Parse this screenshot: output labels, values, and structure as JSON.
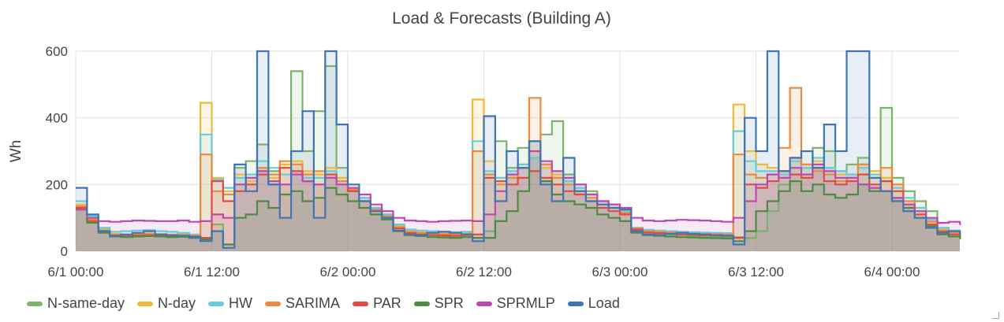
{
  "chart_data": {
    "type": "line",
    "step": true,
    "filled": true,
    "title": "Load & Forecasts (Building A)",
    "xlabel": "",
    "ylabel": "Wh",
    "ylim": [
      0,
      600
    ],
    "yticks": [
      0,
      200,
      400,
      600
    ],
    "xticks": [
      "6/1 00:00",
      "6/1 12:00",
      "6/2 00:00",
      "6/2 12:00",
      "6/3 00:00",
      "6/3 12:00",
      "6/4 00:00"
    ],
    "x_start": "6/1 00:00",
    "x_step_hours": 1,
    "x_range_hours": [
      0,
      78
    ],
    "grid": true,
    "legend_position": "bottom-left",
    "series": [
      {
        "name": "N-same-day",
        "color": "#7cb36b",
        "values": [
          130,
          90,
          60,
          45,
          42,
          45,
          47,
          45,
          43,
          44,
          42,
          40,
          80,
          20,
          250,
          270,
          320,
          240,
          200,
          540,
          300,
          420,
          555,
          250,
          180,
          160,
          130,
          110,
          70,
          55,
          50,
          47,
          46,
          45,
          48,
          50,
          60,
          330,
          250,
          310,
          280,
          350,
          390,
          230,
          200,
          180,
          150,
          130,
          110,
          60,
          55,
          52,
          50,
          48,
          46,
          45,
          44,
          43,
          42,
          40,
          60,
          120,
          200,
          280,
          250,
          310,
          300,
          240,
          260,
          280,
          190,
          430,
          220,
          180,
          150,
          120,
          70,
          55,
          45
        ]
      },
      {
        "name": "N-day",
        "color": "#f0b93a",
        "values": [
          140,
          100,
          65,
          52,
          50,
          52,
          53,
          52,
          50,
          51,
          48,
          445,
          220,
          180,
          230,
          210,
          250,
          220,
          260,
          270,
          240,
          230,
          250,
          220,
          190,
          160,
          130,
          110,
          75,
          62,
          58,
          55,
          54,
          53,
          55,
          455,
          270,
          220,
          230,
          260,
          300,
          250,
          230,
          210,
          190,
          170,
          150,
          140,
          120,
          70,
          62,
          60,
          58,
          56,
          55,
          54,
          53,
          52,
          440,
          300,
          260,
          250,
          240,
          280,
          260,
          270,
          250,
          230,
          230,
          260,
          240,
          220,
          200,
          150,
          130,
          90,
          65,
          58,
          52
        ]
      },
      {
        "name": "HW",
        "color": "#67cbe0",
        "values": [
          150,
          105,
          70,
          58,
          60,
          62,
          63,
          60,
          58,
          55,
          50,
          350,
          215,
          190,
          220,
          230,
          270,
          250,
          230,
          240,
          220,
          220,
          240,
          210,
          190,
          160,
          130,
          110,
          80,
          65,
          62,
          60,
          58,
          57,
          58,
          330,
          240,
          220,
          240,
          260,
          280,
          260,
          240,
          210,
          190,
          170,
          150,
          140,
          120,
          70,
          64,
          62,
          60,
          58,
          57,
          56,
          55,
          54,
          360,
          270,
          240,
          240,
          230,
          270,
          250,
          280,
          250,
          240,
          230,
          250,
          230,
          210,
          190,
          160,
          130,
          95,
          70,
          62,
          55
        ]
      },
      {
        "name": "SARIMA",
        "color": "#ee8a3c",
        "values": [
          135,
          95,
          62,
          50,
          48,
          50,
          51,
          50,
          48,
          49,
          45,
          290,
          180,
          170,
          200,
          220,
          250,
          230,
          270,
          260,
          230,
          240,
          220,
          210,
          185,
          150,
          125,
          105,
          72,
          58,
          55,
          52,
          51,
          50,
          52,
          300,
          230,
          200,
          220,
          250,
          460,
          260,
          220,
          200,
          180,
          160,
          140,
          130,
          115,
          68,
          60,
          58,
          56,
          54,
          53,
          52,
          51,
          50,
          290,
          230,
          220,
          230,
          310,
          490,
          260,
          240,
          230,
          210,
          220,
          260,
          220,
          250,
          200,
          150,
          120,
          88,
          62,
          55,
          48
        ]
      },
      {
        "name": "PAR",
        "color": "#e04c43",
        "values": [
          130,
          90,
          58,
          47,
          45,
          47,
          48,
          47,
          45,
          46,
          44,
          40,
          210,
          150,
          180,
          200,
          230,
          200,
          250,
          240,
          210,
          200,
          230,
          200,
          180,
          150,
          120,
          100,
          68,
          54,
          50,
          48,
          47,
          46,
          48,
          50,
          220,
          210,
          200,
          220,
          240,
          220,
          200,
          180,
          170,
          150,
          130,
          120,
          110,
          65,
          56,
          54,
          52,
          50,
          49,
          48,
          47,
          46,
          40,
          200,
          190,
          210,
          240,
          230,
          220,
          250,
          210,
          200,
          210,
          230,
          200,
          210,
          180,
          140,
          110,
          80,
          58,
          50,
          44
        ]
      },
      {
        "name": "SPR",
        "color": "#4e8b41",
        "values": [
          125,
          85,
          55,
          44,
          42,
          44,
          45,
          44,
          42,
          43,
          40,
          35,
          60,
          20,
          100,
          110,
          150,
          130,
          170,
          180,
          150,
          160,
          190,
          170,
          150,
          130,
          110,
          95,
          60,
          48,
          45,
          42,
          41,
          40,
          42,
          40,
          40,
          90,
          120,
          180,
          330,
          210,
          170,
          150,
          140,
          130,
          110,
          100,
          90,
          55,
          48,
          46,
          44,
          42,
          41,
          40,
          39,
          38,
          30,
          60,
          120,
          150,
          180,
          210,
          180,
          200,
          170,
          160,
          170,
          200,
          180,
          180,
          160,
          130,
          100,
          75,
          50,
          44,
          38
        ]
      },
      {
        "name": "SPRMLP",
        "color": "#c049b1",
        "values": [
          125,
          100,
          90,
          88,
          90,
          92,
          91,
          90,
          90,
          92,
          88,
          90,
          110,
          100,
          200,
          220,
          240,
          210,
          200,
          230,
          210,
          200,
          220,
          200,
          190,
          170,
          140,
          120,
          100,
          92,
          90,
          88,
          90,
          91,
          92,
          90,
          110,
          180,
          230,
          250,
          300,
          270,
          240,
          220,
          200,
          170,
          150,
          140,
          130,
          100,
          92,
          90,
          92,
          94,
          93,
          92,
          90,
          88,
          100,
          150,
          200,
          230,
          220,
          250,
          230,
          260,
          240,
          220,
          220,
          200,
          190,
          180,
          160,
          140,
          120,
          100,
          85,
          88,
          80
        ]
      },
      {
        "name": "Load",
        "color": "#3f74b5",
        "values": [
          190,
          110,
          60,
          45,
          50,
          55,
          60,
          50,
          48,
          46,
          42,
          30,
          60,
          10,
          260,
          180,
          650,
          200,
          100,
          300,
          420,
          100,
          650,
          380,
          200,
          150,
          120,
          100,
          62,
          50,
          48,
          55,
          58,
          55,
          50,
          30,
          405,
          150,
          300,
          250,
          330,
          200,
          150,
          280,
          180,
          150,
          140,
          130,
          125,
          60,
          50,
          48,
          52,
          55,
          52,
          50,
          48,
          46,
          20,
          400,
          300,
          650,
          240,
          280,
          300,
          250,
          380,
          300,
          650,
          650,
          220,
          180,
          150,
          120,
          100,
          70,
          55,
          60,
          50
        ]
      }
    ]
  },
  "legend": [
    {
      "label": "N-same-day",
      "color": "#7cb36b"
    },
    {
      "label": "N-day",
      "color": "#f0b93a"
    },
    {
      "label": "HW",
      "color": "#67cbe0"
    },
    {
      "label": "SARIMA",
      "color": "#ee8a3c"
    },
    {
      "label": "PAR",
      "color": "#e04c43"
    },
    {
      "label": "SPR",
      "color": "#4e8b41"
    },
    {
      "label": "SPRMLP",
      "color": "#c049b1"
    },
    {
      "label": "Load",
      "color": "#3f74b5"
    }
  ]
}
